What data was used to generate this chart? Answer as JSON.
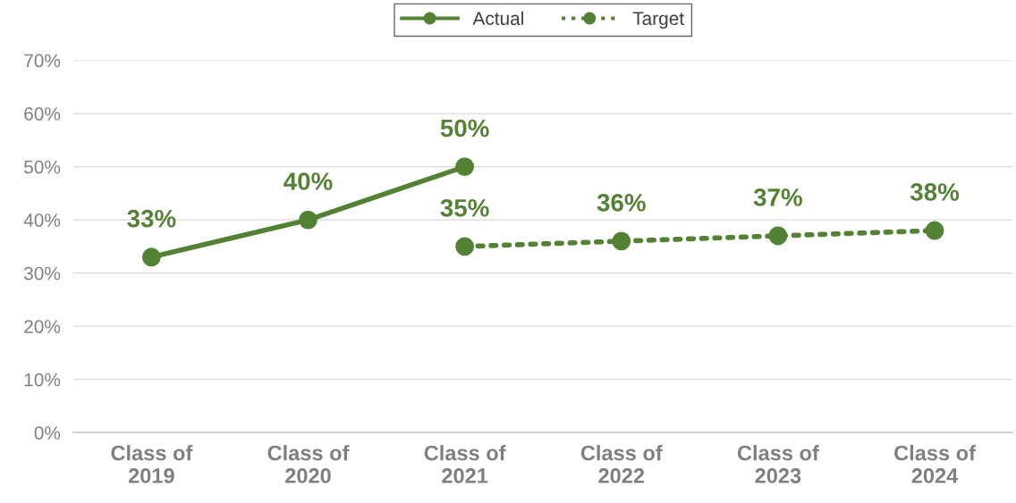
{
  "chart_data": {
    "type": "line",
    "categories": [
      "Class of\n2019",
      "Class of\n2020",
      "Class of\n2021",
      "Class of\n2022",
      "Class of\n2023",
      "Class of\n2024"
    ],
    "series": [
      {
        "name": "Actual",
        "color": "#548235",
        "values": [
          33,
          40,
          50,
          null,
          null,
          null
        ],
        "value_labels": [
          "33%",
          "40%",
          "50%",
          null,
          null,
          null
        ],
        "marker": "circle",
        "line_style": "solid"
      },
      {
        "name": "Target",
        "color": "#548235",
        "values": [
          null,
          null,
          35,
          36,
          37,
          38
        ],
        "value_labels": [
          null,
          null,
          "35%",
          "36%",
          "37%",
          "38%"
        ],
        "marker": "circle",
        "line_style": "dotted"
      }
    ],
    "ylim": [
      0,
      70
    ],
    "yticks": [
      {
        "value": 0,
        "label": "0%"
      },
      {
        "value": 10,
        "label": "10%"
      },
      {
        "value": 20,
        "label": "20%"
      },
      {
        "value": 30,
        "label": "30%"
      },
      {
        "value": 40,
        "label": "40%"
      },
      {
        "value": 50,
        "label": "50%"
      },
      {
        "value": 60,
        "label": "60%"
      },
      {
        "value": 70,
        "label": "70%"
      }
    ],
    "grid": "y",
    "legend": "top"
  }
}
